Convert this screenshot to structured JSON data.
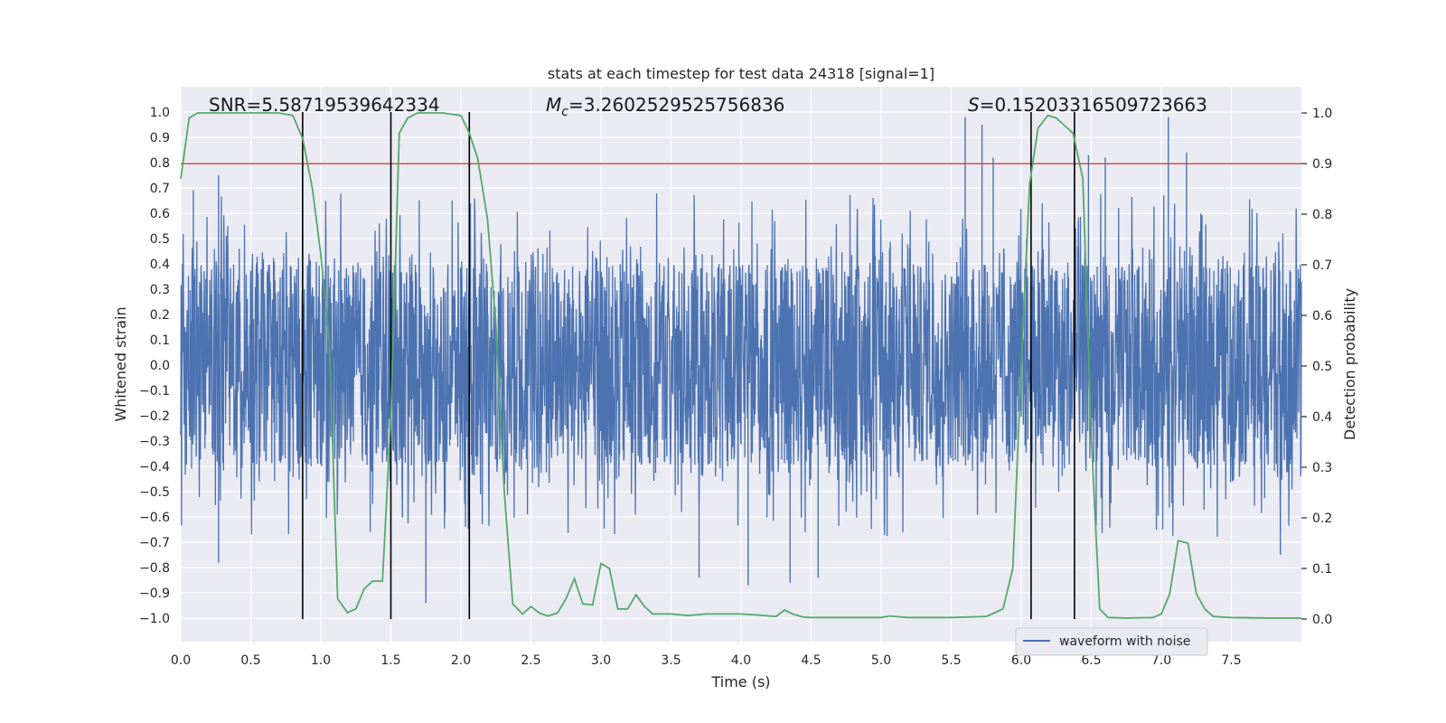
{
  "chart_data": {
    "type": "line",
    "title": "stats at each timestep for test data 24318 [signal=1]",
    "xlabel": "Time (s)",
    "ylabel": "Whitened strain",
    "y2label": "Detection probability",
    "xlim": [
      0.0,
      8.0
    ],
    "ylim": [
      -1.0,
      1.0
    ],
    "y2lim": [
      -0.03,
      1.03
    ],
    "xticks": [
      "0.0",
      "0.5",
      "1.0",
      "1.5",
      "2.0",
      "2.5",
      "3.0",
      "3.5",
      "4.0",
      "4.5",
      "5.0",
      "5.5",
      "6.0",
      "6.5",
      "7.0",
      "7.5"
    ],
    "yticks": [
      "1.0",
      "0.9",
      "0.8",
      "0.7",
      "0.6",
      "0.5",
      "0.4",
      "0.3",
      "0.2",
      "0.1",
      "0.0",
      "−0.1",
      "−0.2",
      "−0.3",
      "−0.4",
      "−0.5",
      "−0.6",
      "−0.7",
      "−0.8",
      "−0.9",
      "−1.0"
    ],
    "y2ticks": [
      "1.0",
      "0.9",
      "0.8",
      "0.7",
      "0.6",
      "0.5",
      "0.4",
      "0.3",
      "0.2",
      "0.1",
      "0.0"
    ],
    "grid": true,
    "legend": {
      "location": "lower-right",
      "entries": [
        "waveform with noise"
      ]
    },
    "annotations": {
      "snr_prefix": "SNR=",
      "snr": "5.58719539642334",
      "mc_symbol": "M",
      "mc_sub": "c",
      "mc_value": "=3.2602529525756836",
      "s_symbol": "S",
      "s_value": "=0.15203316509723663"
    },
    "threshold": {
      "value": 0.9,
      "axis": "right",
      "color": "#c44e52"
    },
    "vlines": [
      0.87,
      1.5,
      2.06,
      6.07,
      6.38
    ],
    "waveform": {
      "name": "waveform with noise",
      "color": "#4c72b0",
      "duration": 8.0,
      "peaks": [
        {
          "t": 0.87,
          "y": 0.83
        },
        {
          "t": 0.27,
          "y": 0.75
        },
        {
          "t": 0.09,
          "y": 0.69
        },
        {
          "t": 0.27,
          "y": -0.78
        },
        {
          "t": 1.75,
          "y": -0.94
        },
        {
          "t": 5.6,
          "y": 0.98
        },
        {
          "t": 5.72,
          "y": 0.95
        },
        {
          "t": 5.8,
          "y": 0.82
        },
        {
          "t": 7.05,
          "y": 0.98
        },
        {
          "t": 7.18,
          "y": 0.84
        },
        {
          "t": 6.38,
          "y": 0.83
        },
        {
          "t": 6.48,
          "y": 0.83
        },
        {
          "t": 6.6,
          "y": 0.82
        },
        {
          "t": 4.35,
          "y": -0.86
        },
        {
          "t": 4.55,
          "y": -0.84
        },
        {
          "t": 4.05,
          "y": -0.87
        },
        {
          "t": 3.7,
          "y": -0.84
        },
        {
          "t": 7.85,
          "y": -0.75
        }
      ]
    },
    "probability": {
      "color": "#55a868",
      "points": [
        [
          0.0,
          0.87
        ],
        [
          0.06,
          0.99
        ],
        [
          0.12,
          1.0
        ],
        [
          0.25,
          1.0
        ],
        [
          0.5,
          1.0
        ],
        [
          0.7,
          1.0
        ],
        [
          0.8,
          0.995
        ],
        [
          0.87,
          0.95
        ],
        [
          0.94,
          0.85
        ],
        [
          1.0,
          0.72
        ],
        [
          1.06,
          0.55
        ],
        [
          1.12,
          0.04
        ],
        [
          1.19,
          0.013
        ],
        [
          1.25,
          0.02
        ],
        [
          1.31,
          0.06
        ],
        [
          1.37,
          0.075
        ],
        [
          1.44,
          0.075
        ],
        [
          1.5,
          0.4
        ],
        [
          1.56,
          0.96
        ],
        [
          1.62,
          0.99
        ],
        [
          1.69,
          1.0
        ],
        [
          1.75,
          1.0
        ],
        [
          1.87,
          1.0
        ],
        [
          2.0,
          0.995
        ],
        [
          2.06,
          0.96
        ],
        [
          2.12,
          0.91
        ],
        [
          2.19,
          0.79
        ],
        [
          2.25,
          0.58
        ],
        [
          2.31,
          0.25
        ],
        [
          2.37,
          0.03
        ],
        [
          2.44,
          0.01
        ],
        [
          2.5,
          0.025
        ],
        [
          2.56,
          0.012
        ],
        [
          2.62,
          0.006
        ],
        [
          2.69,
          0.012
        ],
        [
          2.75,
          0.04
        ],
        [
          2.81,
          0.08
        ],
        [
          2.87,
          0.03
        ],
        [
          2.94,
          0.028
        ],
        [
          3.0,
          0.11
        ],
        [
          3.06,
          0.1
        ],
        [
          3.12,
          0.02
        ],
        [
          3.19,
          0.02
        ],
        [
          3.25,
          0.048
        ],
        [
          3.31,
          0.025
        ],
        [
          3.37,
          0.01
        ],
        [
          3.5,
          0.01
        ],
        [
          3.62,
          0.007
        ],
        [
          3.75,
          0.01
        ],
        [
          3.87,
          0.01
        ],
        [
          4.0,
          0.01
        ],
        [
          4.12,
          0.008
        ],
        [
          4.25,
          0.005
        ],
        [
          4.31,
          0.018
        ],
        [
          4.37,
          0.01
        ],
        [
          4.44,
          0.004
        ],
        [
          4.5,
          0.003
        ],
        [
          4.75,
          0.003
        ],
        [
          5.0,
          0.003
        ],
        [
          5.06,
          0.006
        ],
        [
          5.19,
          0.003
        ],
        [
          5.5,
          0.003
        ],
        [
          5.75,
          0.005
        ],
        [
          5.87,
          0.02
        ],
        [
          5.94,
          0.1
        ],
        [
          6.0,
          0.5
        ],
        [
          6.06,
          0.86
        ],
        [
          6.12,
          0.97
        ],
        [
          6.19,
          0.995
        ],
        [
          6.25,
          0.99
        ],
        [
          6.31,
          0.975
        ],
        [
          6.37,
          0.96
        ],
        [
          6.44,
          0.87
        ],
        [
          6.5,
          0.36
        ],
        [
          6.56,
          0.02
        ],
        [
          6.62,
          0.003
        ],
        [
          6.75,
          0.002
        ],
        [
          6.94,
          0.003
        ],
        [
          7.0,
          0.01
        ],
        [
          7.06,
          0.05
        ],
        [
          7.12,
          0.155
        ],
        [
          7.19,
          0.15
        ],
        [
          7.25,
          0.05
        ],
        [
          7.31,
          0.02
        ],
        [
          7.37,
          0.005
        ],
        [
          7.5,
          0.003
        ],
        [
          7.75,
          0.002
        ],
        [
          8.0,
          0.002
        ]
      ]
    }
  }
}
